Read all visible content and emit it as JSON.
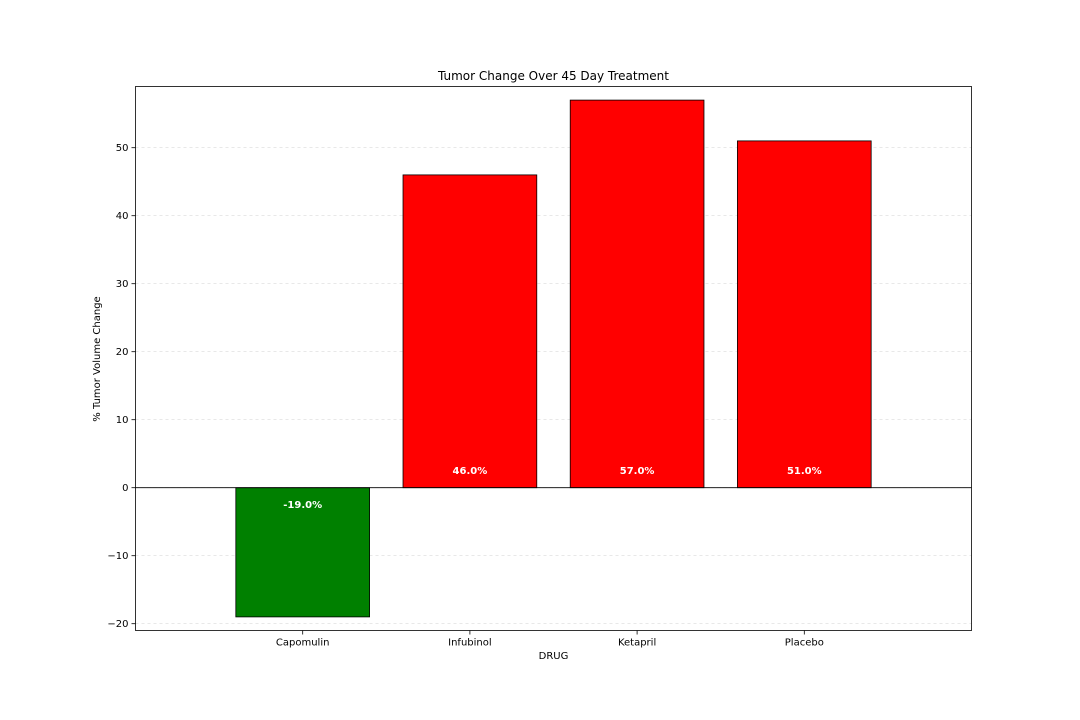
{
  "chart_data": {
    "type": "bar",
    "title": "Tumor Change Over 45 Day Treatment",
    "xlabel": "DRUG",
    "ylabel": "% Tumor Volume Change",
    "categories": [
      "Capomulin",
      "Infubinol",
      "Ketapril",
      "Placebo"
    ],
    "values": [
      -19,
      46,
      57,
      51
    ],
    "bar_labels": [
      "-19.0%",
      "46.0%",
      "57.0%",
      "51.0%"
    ],
    "ylim": [
      -21,
      59
    ],
    "yticks": [
      -20,
      -10,
      0,
      10,
      20,
      30,
      40,
      50
    ],
    "ytick_labels": [
      "−20",
      "−10",
      "0",
      "10",
      "20",
      "30",
      "40",
      "50"
    ],
    "grid": true,
    "colors": {
      "positive": "#ff0000",
      "negative": "#008000",
      "edge": "#000000",
      "grid": "#d9d9d9",
      "label": "#ffffff"
    }
  }
}
